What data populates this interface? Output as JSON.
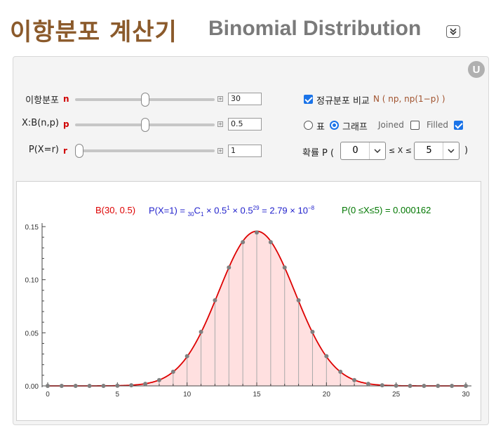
{
  "header": {
    "title_ko": "이항분포 계산기",
    "title_en": "Binomial Distribution"
  },
  "controls": {
    "n": {
      "label": "이항분포",
      "var": "n",
      "value": "30",
      "fraction": 0.5
    },
    "p": {
      "label": "X:B(n,p)",
      "var": "p",
      "value": "0.5",
      "fraction": 0.5
    },
    "r": {
      "label": "P(X=r)",
      "var": "r",
      "value": "1",
      "fraction": 0.0
    },
    "normal_checkbox": {
      "label": "정규분포 비교",
      "checked": true,
      "formula": "N ( np, np(1−p) )"
    },
    "view": {
      "table_label": "표",
      "graph_label": "그래프",
      "selected": "graph"
    },
    "joined": {
      "label": "Joined",
      "checked": false
    },
    "filled": {
      "label": "Filled",
      "checked": true
    },
    "range": {
      "label": "확률 P (",
      "from": "0",
      "middle": "≤ X ≤",
      "to": "5",
      "close": ")"
    }
  },
  "annotations": {
    "dist": "B(30, 0.5)",
    "px_prefix": "P(X=1)  = ",
    "px_sub_n": "30",
    "px_C": "C",
    "px_sub_r": "1",
    "px_base1": " × 0.5",
    "px_exp1": "1",
    "px_base2": " × 0.5",
    "px_exp2": "29",
    "px_result": " = 2.79 × 10",
    "px_exp3": "−8",
    "range_prob": "P(0 ≤X≤5) = 0.000162"
  },
  "colors": {
    "accent_red": "#dd0000",
    "blue": "#2222cc",
    "green": "#007700",
    "fill": "#ffe0e0",
    "title_brown": "#8B5A2B"
  },
  "chart_data": {
    "type": "bar",
    "x": [
      0,
      1,
      2,
      3,
      4,
      5,
      6,
      7,
      8,
      9,
      10,
      11,
      12,
      13,
      14,
      15,
      16,
      17,
      18,
      19,
      20,
      21,
      22,
      23,
      24,
      25,
      26,
      27,
      28,
      29,
      30
    ],
    "values": [
      1e-09,
      2.8e-08,
      4.05e-07,
      3.78e-06,
      2.55e-05,
      0.000133,
      0.000553,
      0.0019,
      0.00545,
      0.0133,
      0.028,
      0.0509,
      0.0806,
      0.1115,
      0.1354,
      0.1445,
      0.1354,
      0.1115,
      0.0806,
      0.0509,
      0.028,
      0.0133,
      0.00545,
      0.0019,
      0.000553,
      0.000133,
      2.55e-05,
      3.78e-06,
      4.05e-07,
      2.8e-08,
      1e-09
    ],
    "normal_curve": {
      "mean": 15,
      "variance": 7.5
    },
    "xlim": [
      0,
      30
    ],
    "ylim": [
      0,
      0.15
    ],
    "xticks": [
      "0",
      "5",
      "10",
      "15",
      "20",
      "25",
      "30"
    ],
    "yticks": [
      "0.00",
      "0.05",
      "0.10",
      "0.15"
    ],
    "ytick_values": [
      0,
      0.05,
      0.1,
      0.15
    ],
    "xtick_values": [
      0,
      5,
      10,
      15,
      20,
      25,
      30
    ]
  }
}
